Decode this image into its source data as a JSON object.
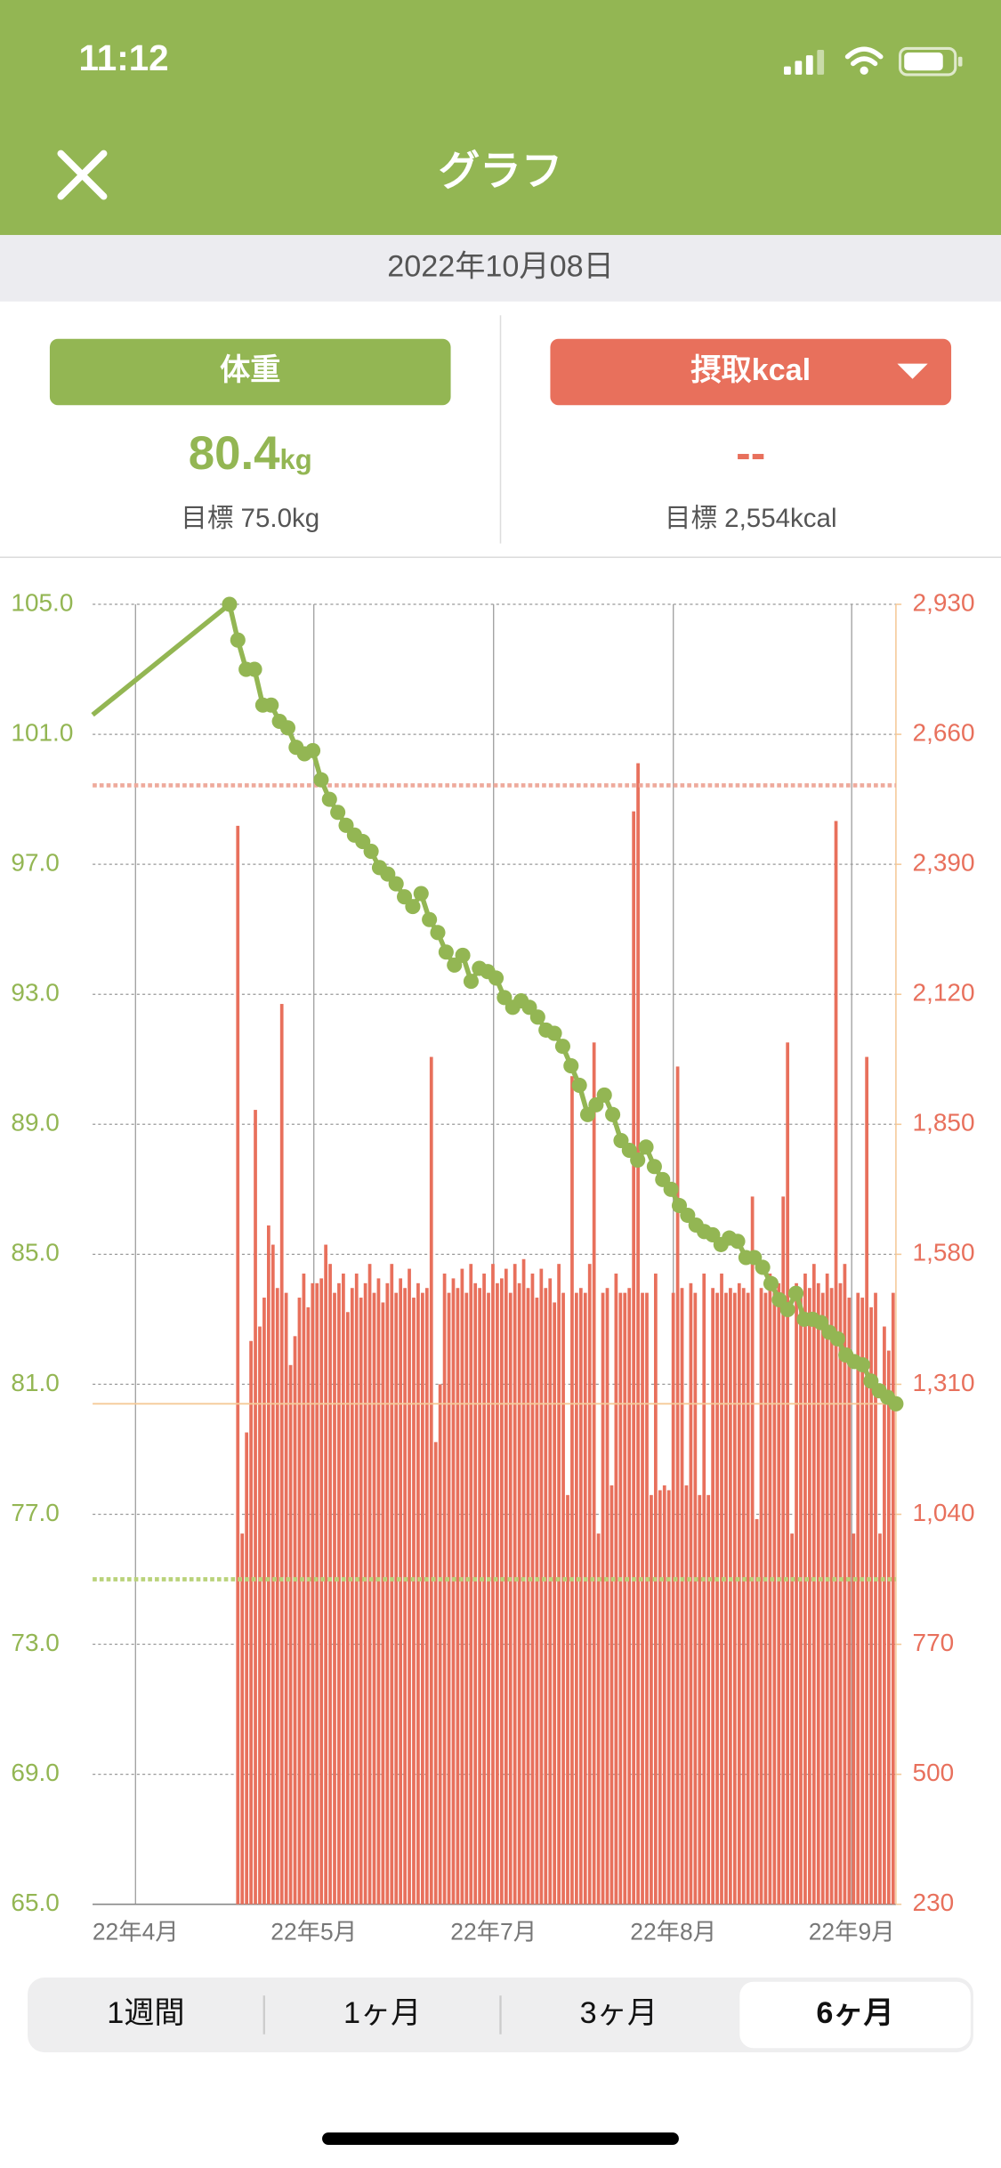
{
  "status_bar": {
    "time": "11:12"
  },
  "header": {
    "title": "グラフ"
  },
  "date": "2022年10月08日",
  "cards": [
    {
      "button": "体重",
      "value": "80.4",
      "unit": "kg",
      "goal": "目標 75.0kg"
    },
    {
      "button": "摂取kcal",
      "value": "--",
      "goal": "目標 2,554kcal"
    }
  ],
  "chart_data": {
    "type": "combo",
    "xtick_labels": [
      "22年4月",
      "22年5月",
      "22年7月",
      "22年8月",
      "22年9月"
    ],
    "ylim": [
      65,
      105
    ],
    "yticks": [
      {
        "value": 65,
        "label": "65.0"
      },
      {
        "value": 69,
        "label": "69.0"
      },
      {
        "value": 73,
        "label": "73.0"
      },
      {
        "value": 77,
        "label": "77.0"
      },
      {
        "value": 81,
        "label": "81.0"
      },
      {
        "value": 85,
        "label": "85.0"
      },
      {
        "value": 89,
        "label": "89.0"
      },
      {
        "value": 93,
        "label": "93.0"
      },
      {
        "value": 97,
        "label": "97.0"
      },
      {
        "value": 101,
        "label": "101.0"
      },
      {
        "value": 105,
        "label": "105.0"
      }
    ],
    "y2lim": [
      230,
      2930
    ],
    "y2ticks": [
      230,
      500,
      770,
      {
        "value": 1040,
        "label": "1,040"
      },
      {
        "value": 1310,
        "label": "1,310"
      },
      {
        "value": 1580,
        "label": "1,580"
      },
      {
        "value": 1850,
        "label": "1,850"
      },
      {
        "value": 2120,
        "label": "2,120"
      },
      {
        "value": 2390,
        "label": "2,390"
      },
      {
        "value": 2660,
        "label": "2,660"
      },
      {
        "value": 2930,
        "label": "2,930"
      }
    ],
    "grid": true,
    "ytick_color": "#93b653",
    "y2tick_color": "#e8705c",
    "goal_lines": [
      {
        "axis": "y",
        "value": 75,
        "color": "#b9d27a",
        "style": "dotted"
      },
      {
        "axis": "y2",
        "value": 2554,
        "color": "#eeaa9c",
        "style": "dotted"
      },
      {
        "axis": "y",
        "value": 80.4,
        "color": "#f5c998",
        "style": "solid"
      }
    ],
    "series": [
      {
        "type": "bar",
        "axis": "y2",
        "color": "#e8705c",
        "values": [
          2470,
          1000,
          1210,
          1400,
          1880,
          1430,
          1490,
          1640,
          1600,
          1510,
          2100,
          1500,
          1350,
          1410,
          1490,
          1540,
          1470,
          1520,
          1520,
          1530,
          1600,
          1560,
          1500,
          1520,
          1540,
          1460,
          1510,
          1540,
          1490,
          1520,
          1560,
          1500,
          1530,
          1480,
          1520,
          1560,
          1500,
          1530,
          1510,
          1550,
          1490,
          1520,
          1500,
          1510,
          1990,
          1190,
          1310,
          1540,
          1500,
          1530,
          1510,
          1550,
          1500,
          1560,
          1520,
          1510,
          1540,
          1500,
          1560,
          1520,
          1530,
          1550,
          1500,
          1560,
          1520,
          1570,
          1510,
          1540,
          1490,
          1550,
          1510,
          1530,
          1480,
          1560,
          1500,
          1080,
          1950,
          1500,
          1510,
          1500,
          1560,
          2020,
          1000,
          1500,
          1510,
          1100,
          1540,
          1500,
          1500,
          1510,
          2500,
          2600,
          1500,
          1500,
          1080,
          1540,
          1090,
          1100,
          1090,
          1500,
          1970,
          1510,
          1100,
          1520,
          1500,
          1080,
          1540,
          1080,
          1510,
          1500,
          1540,
          1500,
          1510,
          1500,
          1520,
          1510,
          1500,
          1700,
          1030,
          1510,
          1500,
          1540,
          1500,
          1520,
          1700,
          2020,
          1000,
          1520,
          1500,
          1540,
          1510,
          1560,
          1520,
          1500,
          1540,
          1510,
          2480,
          1520,
          1560,
          1490,
          1000,
          1500,
          1490,
          1990,
          1470,
          1500,
          1000,
          1430,
          1380,
          1500
        ]
      },
      {
        "type": "line",
        "axis": "y",
        "color": "#93b653",
        "values": [
          101.6,
          105.0,
          103.9,
          103.0,
          103.0,
          101.9,
          101.9,
          101.4,
          101.2,
          100.6,
          100.4,
          100.5,
          99.6,
          99.0,
          98.6,
          98.2,
          97.9,
          97.7,
          97.4,
          96.9,
          96.7,
          96.4,
          96.0,
          95.7,
          96.1,
          95.3,
          94.9,
          94.3,
          93.9,
          94.2,
          93.4,
          93.8,
          93.7,
          93.5,
          92.9,
          92.6,
          92.8,
          92.6,
          92.3,
          91.9,
          91.8,
          91.4,
          90.8,
          90.2,
          89.3,
          89.6,
          89.9,
          89.3,
          88.5,
          88.2,
          87.9,
          88.3,
          87.7,
          87.3,
          87.0,
          86.5,
          86.2,
          85.9,
          85.7,
          85.6,
          85.3,
          85.5,
          85.4,
          84.9,
          84.9,
          84.6,
          84.1,
          83.6,
          83.3,
          83.8,
          83.0,
          83.0,
          82.9,
          82.6,
          82.4,
          81.9,
          81.7,
          81.6,
          81.1,
          80.8,
          80.6,
          80.4
        ]
      }
    ]
  },
  "tabs": {
    "items": [
      "1週間",
      "1ヶ月",
      "3ヶ月",
      "6ヶ月"
    ],
    "selected": 3
  }
}
